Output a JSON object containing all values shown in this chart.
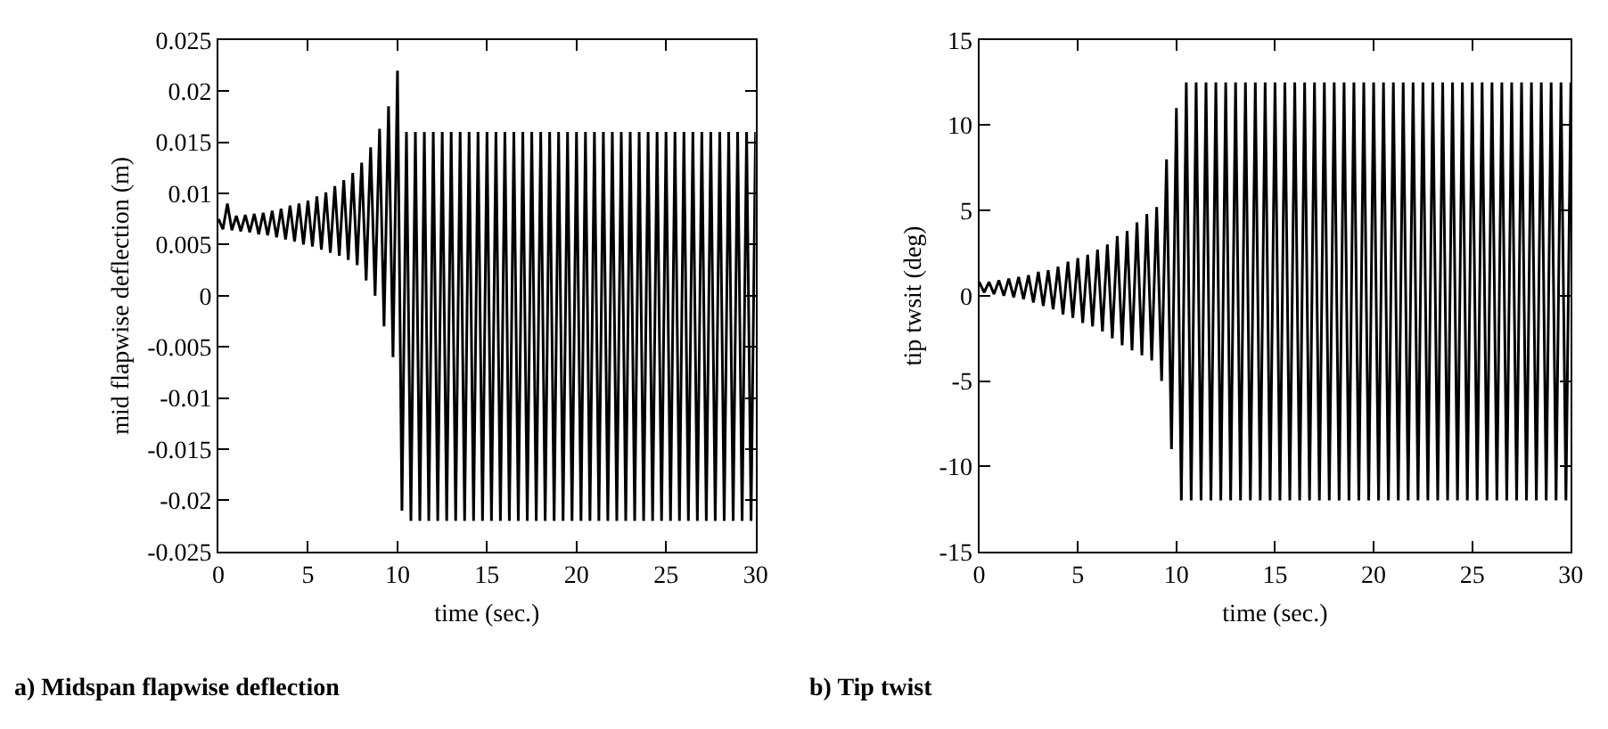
{
  "chart_data": [
    {
      "type": "line",
      "xlabel": "time (sec.)",
      "ylabel": "mid flapwise deflection (m)",
      "annotations": [
        "a) Midspan flapwise deflection"
      ],
      "x": [
        0,
        0.25,
        0.5,
        0.75,
        1,
        1.25,
        1.5,
        1.75,
        2,
        2.25,
        2.5,
        2.75,
        3,
        3.25,
        3.5,
        3.75,
        4,
        4.25,
        4.5,
        4.75,
        5,
        5.25,
        5.5,
        5.75,
        6,
        6.25,
        6.5,
        6.75,
        7,
        7.25,
        7.5,
        7.75,
        8,
        8.25,
        8.5,
        8.75,
        9,
        9.25,
        9.5,
        9.75,
        10,
        10.25,
        10.5,
        10.75,
        11,
        11.25,
        11.5,
        11.75,
        12,
        12.25,
        12.5,
        12.75,
        13,
        13.25,
        13.5,
        13.75,
        14,
        14.25,
        14.5,
        14.75,
        15,
        15.25,
        15.5,
        15.75,
        16,
        16.25,
        16.5,
        16.75,
        17,
        17.25,
        17.5,
        17.75,
        18,
        18.25,
        18.5,
        18.75,
        19,
        19.25,
        19.5,
        19.75,
        20,
        20.25,
        20.5,
        20.75,
        21,
        21.25,
        21.5,
        21.75,
        22,
        22.25,
        22.5,
        22.75,
        23,
        23.25,
        23.5,
        23.75,
        24,
        24.25,
        24.5,
        24.75,
        25,
        25.25,
        25.5,
        25.75,
        26,
        26.25,
        26.5,
        26.75,
        27,
        27.25,
        27.5,
        27.75,
        28,
        28.25,
        28.5,
        28.75,
        29,
        29.25,
        29.5,
        29.75,
        30
      ],
      "series": [
        {
          "color": "#000000",
          "values": [
            0.0075,
            0.0065,
            0.009,
            0.0064,
            0.0078,
            0.0063,
            0.0079,
            0.0062,
            0.008,
            0.006,
            0.0081,
            0.0059,
            0.0083,
            0.0057,
            0.0085,
            0.0055,
            0.0088,
            0.0053,
            0.009,
            0.005,
            0.0093,
            0.0048,
            0.0097,
            0.0045,
            0.0101,
            0.0042,
            0.0107,
            0.0039,
            0.0113,
            0.0035,
            0.012,
            0.003,
            0.013,
            0.0015,
            0.0145,
            0,
            0.0163,
            -0.003,
            0.0185,
            -0.006,
            0.022,
            -0.021,
            0.016,
            -0.022,
            0.016,
            -0.022,
            0.016,
            -0.022,
            0.016,
            -0.022,
            0.016,
            -0.022,
            0.016,
            -0.022,
            0.016,
            -0.022,
            0.016,
            -0.022,
            0.016,
            -0.022,
            0.016,
            -0.022,
            0.016,
            -0.022,
            0.016,
            -0.022,
            0.016,
            -0.022,
            0.016,
            -0.022,
            0.016,
            -0.022,
            0.016,
            -0.022,
            0.016,
            -0.022,
            0.016,
            -0.022,
            0.016,
            -0.022,
            0.016,
            -0.022,
            0.016,
            -0.022,
            0.016,
            -0.022,
            0.016,
            -0.022,
            0.016,
            -0.022,
            0.016,
            -0.022,
            0.016,
            -0.022,
            0.016,
            -0.022,
            0.016,
            -0.022,
            0.016,
            -0.022,
            0.016,
            -0.022,
            0.016,
            -0.022,
            0.016,
            -0.022,
            0.016,
            -0.022,
            0.016,
            -0.022,
            0.016,
            -0.022,
            0.016,
            -0.022,
            0.016,
            -0.022,
            0.016,
            -0.022,
            0.016,
            -0.022,
            0.016
          ]
        }
      ],
      "xlim": [
        0,
        30
      ],
      "xticks": [
        0,
        5,
        10,
        15,
        20,
        25,
        30
      ],
      "ylim": [
        -0.025,
        0.025
      ],
      "yticks": [
        -0.025,
        -0.02,
        -0.015,
        -0.01,
        -0.005,
        0,
        0.005,
        0.01,
        0.015,
        0.02,
        0.025
      ],
      "marker": "none",
      "line_style": "solid"
    },
    {
      "type": "line",
      "xlabel": "time (sec.)",
      "ylabel": "tip twsit (deg)",
      "annotations": [
        "b) Tip twist"
      ],
      "x": [
        0,
        0.25,
        0.5,
        0.75,
        1,
        1.25,
        1.5,
        1.75,
        2,
        2.25,
        2.5,
        2.75,
        3,
        3.25,
        3.5,
        3.75,
        4,
        4.25,
        4.5,
        4.75,
        5,
        5.25,
        5.5,
        5.75,
        6,
        6.25,
        6.5,
        6.75,
        7,
        7.25,
        7.5,
        7.75,
        8,
        8.25,
        8.5,
        8.75,
        9,
        9.25,
        9.5,
        9.75,
        10,
        10.25,
        10.5,
        10.75,
        11,
        11.25,
        11.5,
        11.75,
        12,
        12.25,
        12.5,
        12.75,
        13,
        13.25,
        13.5,
        13.75,
        14,
        14.25,
        14.5,
        14.75,
        15,
        15.25,
        15.5,
        15.75,
        16,
        16.25,
        16.5,
        16.75,
        17,
        17.25,
        17.5,
        17.75,
        18,
        18.25,
        18.5,
        18.75,
        19,
        19.25,
        19.5,
        19.75,
        20,
        20.25,
        20.5,
        20.75,
        21,
        21.25,
        21.5,
        21.75,
        22,
        22.25,
        22.5,
        22.75,
        23,
        23.25,
        23.5,
        23.75,
        24,
        24.25,
        24.5,
        24.75,
        25,
        25.25,
        25.5,
        25.75,
        26,
        26.25,
        26.5,
        26.75,
        27,
        27.25,
        27.5,
        27.75,
        28,
        28.25,
        28.5,
        28.75,
        29,
        29.25,
        29.5,
        29.75,
        30
      ],
      "series": [
        {
          "color": "#000000",
          "values": [
            0.8,
            0.2,
            0.8,
            0.1,
            0.9,
            0,
            1,
            -0.1,
            1.1,
            -0.2,
            1.2,
            -0.4,
            1.4,
            -0.6,
            1.5,
            -0.8,
            1.7,
            -1.1,
            2,
            -1.3,
            2.2,
            -1.6,
            2.4,
            -1.8,
            2.7,
            -2.1,
            3,
            -2.5,
            3.5,
            -2.9,
            3.8,
            -3.2,
            4.3,
            -3.5,
            4.8,
            -3.8,
            5.2,
            -5,
            8,
            -9,
            11,
            -12,
            12.5,
            -12,
            12.5,
            -12,
            12.5,
            -12,
            12.5,
            -12,
            12.5,
            -12,
            12.5,
            -12,
            12.5,
            -12,
            12.5,
            -12,
            12.5,
            -12,
            12.5,
            -12,
            12.5,
            -12,
            12.5,
            -12,
            12.5,
            -12,
            12.5,
            -12,
            12.5,
            -12,
            12.5,
            -12,
            12.5,
            -12,
            12.5,
            -12,
            12.5,
            -12,
            12.5,
            -12,
            12.5,
            -12,
            12.5,
            -12,
            12.5,
            -12,
            12.5,
            -12,
            12.5,
            -12,
            12.5,
            -12,
            12.5,
            -12,
            12.5,
            -12,
            12.5,
            -12,
            12.5,
            -12,
            12.5,
            -12,
            12.5,
            -12,
            12.5,
            -12,
            12.5,
            -12,
            12.5,
            -12,
            12.5,
            -12,
            12.5,
            -12,
            12.5,
            -12,
            12.5,
            -12,
            12.5
          ]
        }
      ],
      "xlim": [
        0,
        30
      ],
      "xticks": [
        0,
        5,
        10,
        15,
        20,
        25,
        30
      ],
      "ylim": [
        -15,
        15
      ],
      "yticks": [
        -15,
        -10,
        -5,
        0,
        5,
        10,
        15
      ],
      "marker": "none",
      "line_style": "solid"
    }
  ]
}
